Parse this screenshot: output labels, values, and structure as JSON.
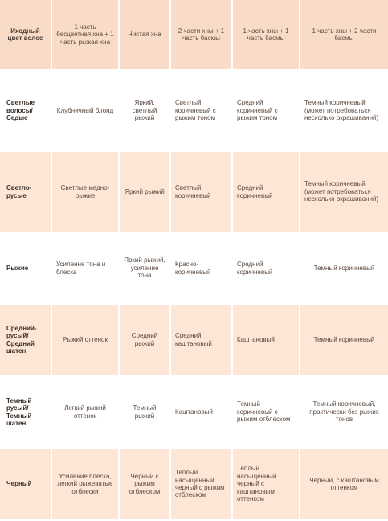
{
  "table": {
    "headers": [
      "Иходный цвет волос",
      "1 часть бесцветная хна + 1 часть рыжая хна",
      "Чистая хна",
      "2 части хны + 1 часть басмы",
      "1 часть хны + 1 часть басмы",
      "1 часть хны + 2 части басмы"
    ],
    "rows": [
      {
        "label": "Светлые волосы/ Седые",
        "cells": [
          "Клубничный блонд",
          "Яркий, светлый рыжий",
          "Светлый коричневый с рыжим тоном",
          "Средний коричневый с рыжим тоном",
          "Темный коричневый (может потребоваться несколько окрашиваний)"
        ]
      },
      {
        "label": "Светло-русые",
        "cells": [
          "Светлые медно-рыжие",
          "Яркий рыжий",
          "Светлый коричневый",
          "Средний коричневый",
          "Темный коричневый (может потребоваться несколько окрашиваний)"
        ]
      },
      {
        "label": "Рыжие",
        "cells": [
          "Усиление тона и блеска",
          "Яркий рыжий, усиление тона",
          "Красно-коричневый",
          "Средний коричневый",
          "Темный коричневый"
        ]
      },
      {
        "label": "Средний-русый/ Средний шатен",
        "cells": [
          "Рыжий оттенок",
          "Средний рыжий",
          "Средний каштановый",
          "Каштановый",
          "Темный коричневый"
        ]
      },
      {
        "label": "Темный русый/ Темный шатен",
        "cells": [
          "Легкий рыжий оттенок",
          "Темный рыжий",
          "Каштановый",
          "Темный коричневый с рыжим отблеском",
          "Темный коричневый, практически без рыжих тонов"
        ]
      },
      {
        "label": "Черный",
        "cells": [
          "Усиление блеска, легкий рыжеватые отблески",
          "Черный с рыжим отблеском",
          "Теплый насыщенный черный с рыжим отблеском",
          "Теплый насыщенный черный с каштановым оттенком",
          "Черный, с каштановым оттенком"
        ]
      }
    ]
  }
}
